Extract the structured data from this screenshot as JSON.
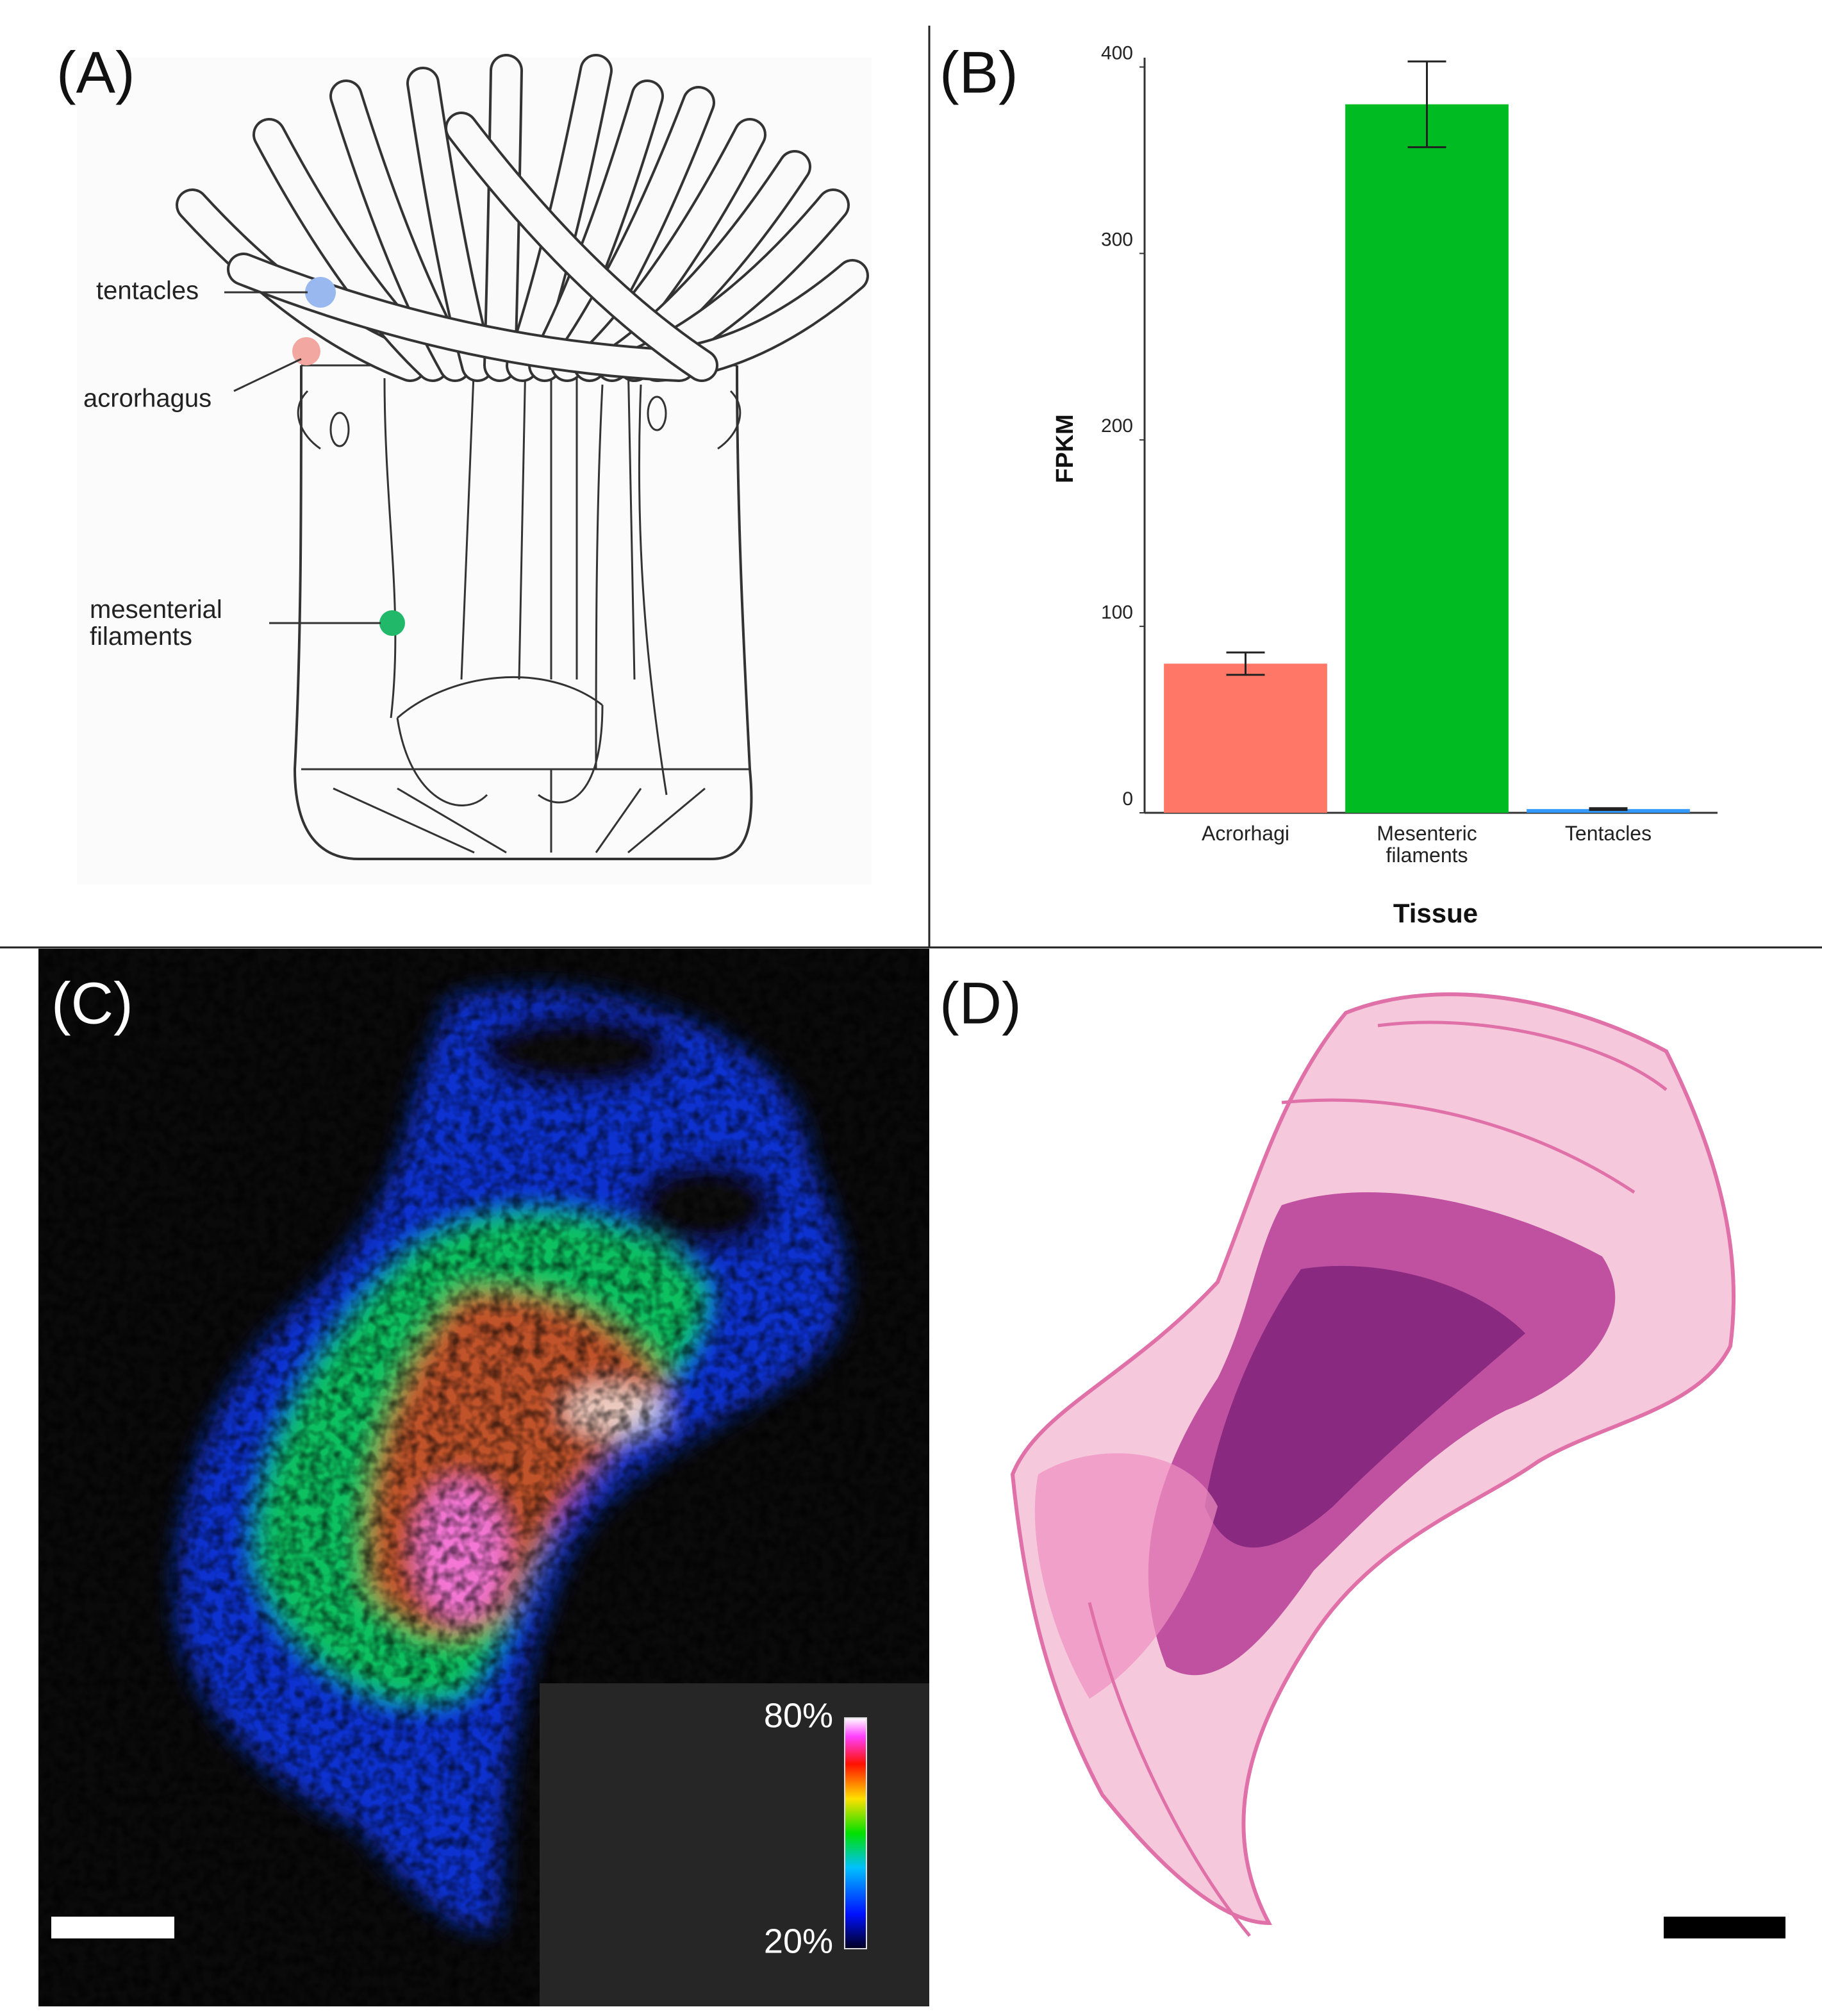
{
  "panels": {
    "a": {
      "label": "(A)",
      "annotations": [
        "tentacles",
        "acrorhagus",
        "mesenterial filaments"
      ]
    },
    "b": {
      "label": "(B)"
    },
    "c": {
      "label": "(C)",
      "colorbar_max": "80%",
      "colorbar_min": "20%"
    },
    "d": {
      "label": "(D)"
    }
  },
  "chart_data": {
    "type": "bar",
    "x_label": "Tissue",
    "y_label": "FPKM",
    "categories": [
      "Acrorhagi",
      "Mesenteric filaments",
      "Tentacles"
    ],
    "values": [
      80,
      380,
      2
    ],
    "errors": [
      6,
      23,
      0.5
    ],
    "colors": [
      "#ff7766",
      "#00bb22",
      "#3399ff"
    ],
    "ylim": [
      0,
      405
    ],
    "yticks": [
      0,
      100,
      200,
      300,
      400
    ]
  }
}
